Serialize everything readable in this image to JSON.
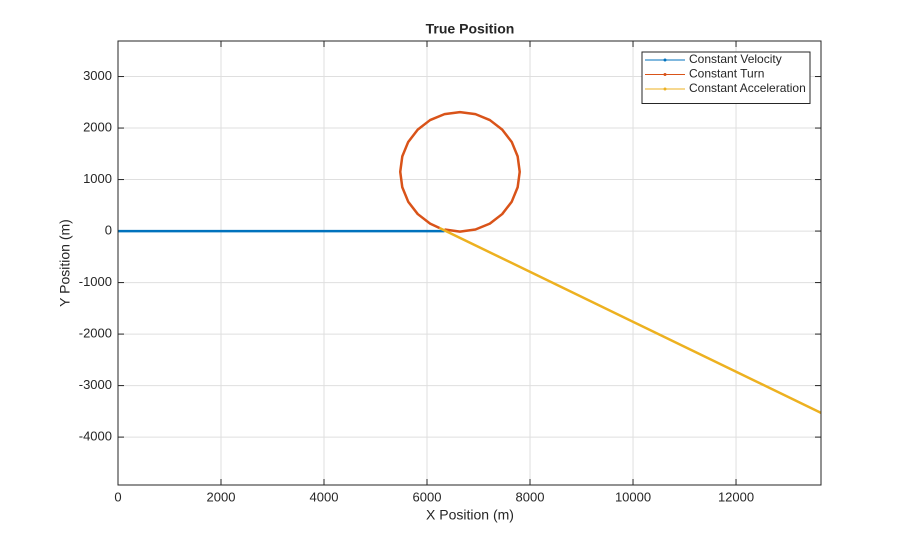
{
  "chart_data": {
    "type": "line",
    "title": "True Position",
    "x_label": "X Position (m)",
    "y_label": "Y Position (m)",
    "xlim": [
      0,
      13650
    ],
    "ylim": [
      -4930,
      3690
    ],
    "xticks": [
      0,
      2000,
      4000,
      6000,
      8000,
      10000,
      12000
    ],
    "yticks": [
      -4000,
      -3000,
      -2000,
      -1000,
      0,
      1000,
      2000,
      3000
    ],
    "grid": true,
    "legend": "northeast",
    "series": [
      {
        "name": "Constant Velocity",
        "color": "#0072BD",
        "x": [
          0,
          6340
        ],
        "values": [
          0,
          0
        ]
      },
      {
        "name": "Constant Turn",
        "color": "#D95319",
        "x": [
          6340,
          6640,
          6940,
          7220,
          7460,
          7645,
          7760,
          7800,
          7760,
          7645,
          7460,
          7220,
          6940,
          6640,
          6340,
          6060,
          5820,
          5635,
          5520,
          5480,
          5520,
          5635,
          5820,
          6060,
          6243
        ],
        "values": [
          30,
          -10,
          30,
          145,
          330,
          570,
          850,
          1150,
          1450,
          1730,
          1970,
          2155,
          2270,
          2310,
          2270,
          2155,
          1970,
          1730,
          1450,
          1150,
          850,
          570,
          330,
          145,
          60
        ]
      },
      {
        "name": "Constant Acceleration",
        "color": "#EDB120",
        "x": [
          6243,
          13650
        ],
        "values": [
          60,
          -3530
        ]
      }
    ]
  }
}
